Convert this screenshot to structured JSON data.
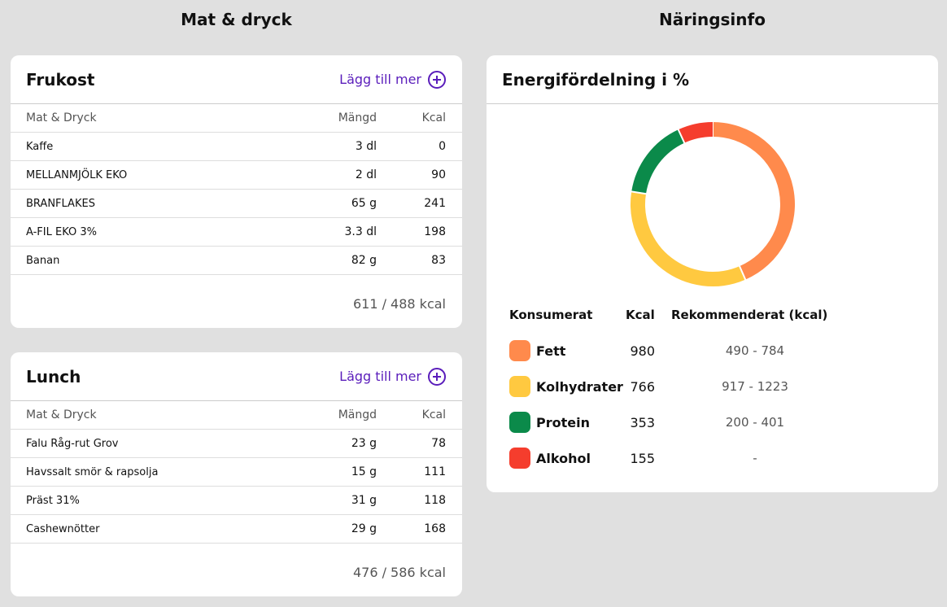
{
  "headings": {
    "left": "Mat & dryck",
    "right": "Näringsinfo"
  },
  "meals": [
    {
      "title": "Frukost",
      "add_label": "Lägg till mer",
      "columns": [
        "Mat & Dryck",
        "Mängd",
        "Kcal"
      ],
      "rows": [
        {
          "name": "Kaffe",
          "amount": "3 dl",
          "kcal": "0"
        },
        {
          "name": "MELLANMJÖLK EKO",
          "amount": "2 dl",
          "kcal": "90"
        },
        {
          "name": "BRANFLAKES",
          "amount": "65 g",
          "kcal": "241"
        },
        {
          "name": "A-FIL EKO 3%",
          "amount": "3.3 dl",
          "kcal": "198"
        },
        {
          "name": "Banan",
          "amount": "82 g",
          "kcal": "83"
        }
      ],
      "total": "611 / 488 kcal"
    },
    {
      "title": "Lunch",
      "add_label": "Lägg till mer",
      "columns": [
        "Mat & Dryck",
        "Mängd",
        "Kcal"
      ],
      "rows": [
        {
          "name": "Falu Råg-rut Grov",
          "amount": "23 g",
          "kcal": "78"
        },
        {
          "name": "Havssalt smör & rapsolja",
          "amount": "15 g",
          "kcal": "111"
        },
        {
          "name": "Präst 31%",
          "amount": "31 g",
          "kcal": "118"
        },
        {
          "name": "Cashewnötter",
          "amount": "29 g",
          "kcal": "168"
        }
      ],
      "total": "476 / 586 kcal"
    }
  ],
  "energy": {
    "title": "Energifördelning i %",
    "legend_headers": {
      "consumed": "Konsumerat",
      "kcal": "Kcal",
      "recommended": "Rekommenderat (kcal)"
    },
    "items": [
      {
        "name": "Fett",
        "kcal": "980",
        "recommended": "490 - 784",
        "color": "#ff8a4c"
      },
      {
        "name": "Kolhydrater",
        "kcal": "766",
        "recommended": "917 - 1223",
        "color": "#ffc940"
      },
      {
        "name": "Protein",
        "kcal": "353",
        "recommended": "200 - 401",
        "color": "#0b8a4a"
      },
      {
        "name": "Alkohol",
        "kcal": "155",
        "recommended": "-",
        "color": "#f53d2d"
      }
    ]
  }
}
